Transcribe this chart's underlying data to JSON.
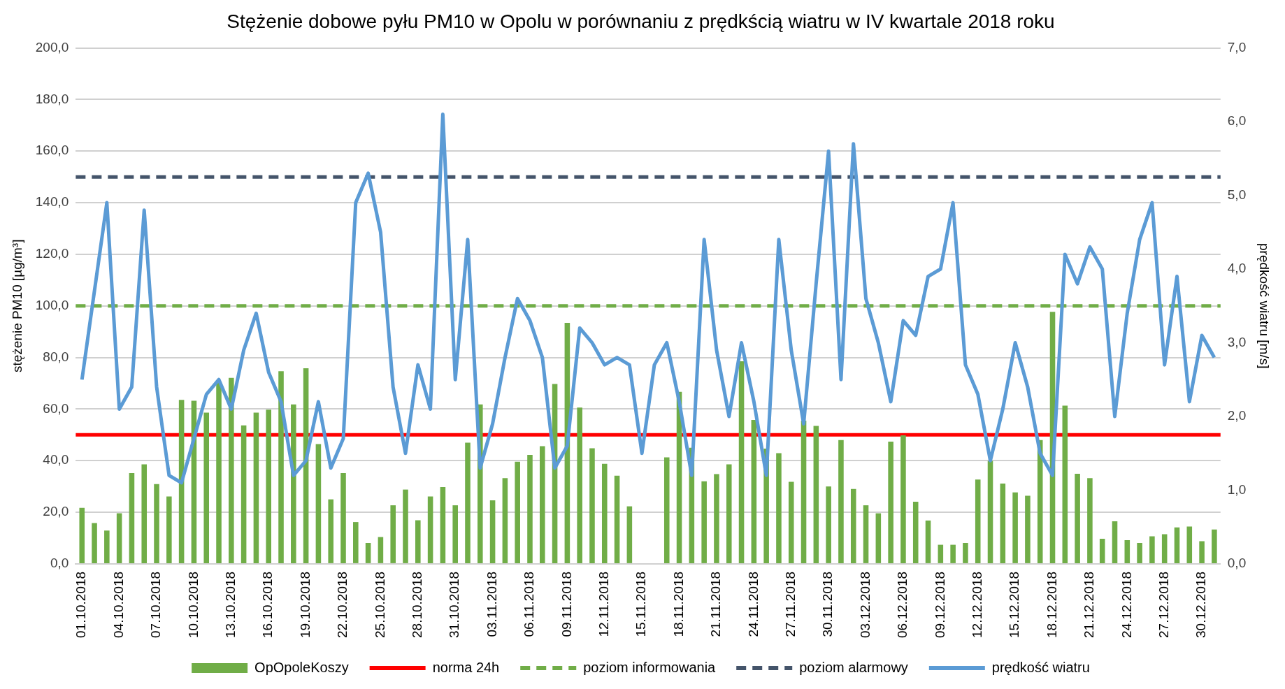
{
  "chart_data": {
    "type": "bar",
    "title": "Stężenie dobowe pyłu PM10 w Opolu w porównaniu z prędkścią wiatru w IV kwartale 2018 roku",
    "ylabel": "stężenie PM10 [µg/m³]",
    "y2label": "prędkość wiatru [m/s]",
    "categories": [
      "01.10.2018",
      null,
      null,
      "04.10.2018",
      null,
      null,
      "07.10.2018",
      null,
      null,
      "10.10.2018",
      null,
      null,
      "13.10.2018",
      null,
      null,
      "16.10.2018",
      null,
      null,
      "19.10.2018",
      null,
      null,
      "22.10.2018",
      null,
      null,
      "25.10.2018",
      null,
      null,
      "28.10.2018",
      null,
      null,
      "31.10.2018",
      null,
      null,
      "03.11.2018",
      null,
      null,
      "06.11.2018",
      null,
      null,
      "09.11.2018",
      null,
      null,
      "12.11.2018",
      null,
      null,
      "15.11.2018",
      null,
      null,
      "18.11.2018",
      null,
      null,
      "21.11.2018",
      null,
      null,
      "24.11.2018",
      null,
      null,
      "27.11.2018",
      null,
      null,
      "30.11.2018",
      null,
      null,
      "03.12.2018",
      null,
      null,
      "06.12.2018",
      null,
      null,
      "09.12.2018",
      null,
      null,
      "12.12.2018",
      null,
      null,
      "15.12.2018",
      null,
      null,
      "18.12.2018",
      null,
      null,
      "21.12.2018",
      null,
      null,
      "24.12.2018",
      null,
      null,
      "27.12.2018",
      null,
      null,
      "30.12.2018",
      null
    ],
    "series": [
      {
        "name": "OpOpoleKoszy",
        "color": "#70ad47",
        "values": [
          21.7,
          15.8,
          12.9,
          19.6,
          35.2,
          38.6,
          30.9,
          26.1,
          63.6,
          63.2,
          58.6,
          70.4,
          72.1,
          53.7,
          58.6,
          59.8,
          74.7,
          61.8,
          75.8,
          46.4,
          25,
          35.2,
          16.2,
          8.1,
          10.4,
          22.7,
          28.8,
          16.9,
          26.1,
          29.8,
          22.7,
          47,
          61.8,
          24.6,
          33.2,
          39.6,
          42.2,
          45.6,
          69.7,
          93.4,
          60.6,
          44.8,
          38.8,
          34.2,
          22.3,
          null,
          null,
          41.3,
          66.7,
          45,
          32,
          34.8,
          38.6,
          78.5,
          55.8,
          44.7,
          42.9,
          31.8,
          55.5,
          53.5,
          30,
          48,
          29,
          22.7,
          19.6,
          47.4,
          49.8,
          24.1,
          16.8,
          7.4,
          7.4,
          8.1,
          32.7,
          39.9,
          31.1,
          27.7,
          26.4,
          48,
          97.7,
          61.3,
          34.9,
          33.2,
          9.7,
          16.5,
          9.2,
          8.1,
          10.7,
          11.5,
          14.1,
          14.5,
          8.8,
          13.3
        ]
      },
      {
        "name": "prędkość wiatru",
        "type": "line",
        "axis": "y2",
        "color": "#5b9bd5",
        "values": [
          2.5,
          3.7,
          4.9,
          2.1,
          2.4,
          4.8,
          2.4,
          1.2,
          1.1,
          1.7,
          2.3,
          2.5,
          2.1,
          2.9,
          3.4,
          2.6,
          2.2,
          1.2,
          1.4,
          2.2,
          1.3,
          1.7,
          4.9,
          5.3,
          4.5,
          2.4,
          1.5,
          2.7,
          2.1,
          6.1,
          2.5,
          4.4,
          1.3,
          1.9,
          2.8,
          3.6,
          3.3,
          2.8,
          1.3,
          1.6,
          3.2,
          3,
          2.7,
          2.8,
          2.7,
          1.5,
          2.7,
          3,
          2.2,
          1.2,
          4.4,
          2.9,
          2,
          3,
          2.2,
          1.2,
          4.4,
          2.9,
          1.9,
          3.8,
          5.6,
          2.5,
          5.7,
          3.6,
          3,
          2.2,
          3.3,
          3.1,
          3.9,
          4,
          4.9,
          2.7,
          2.3,
          1.4,
          2.1,
          3,
          2.4,
          1.5,
          1.2,
          4.2,
          3.8,
          4.3,
          4,
          2,
          3.4,
          4.4,
          4.9,
          2.7,
          3.9,
          2.2,
          3.1,
          2.8
        ]
      }
    ],
    "ref_lines": [
      {
        "axis": "y",
        "value": 50,
        "label": "norma 24h",
        "color": "#ff0000",
        "line_style": "solid"
      },
      {
        "axis": "y",
        "value": 100,
        "label": "poziom informowania",
        "color": "#70ad47",
        "line_style": "dashed"
      },
      {
        "axis": "y",
        "value": 150,
        "label": "poziom alarmowy",
        "color": "#44546a",
        "line_style": "dashed"
      }
    ],
    "ylim": [
      0,
      200
    ],
    "yticks": [
      {
        "value": 0,
        "label": "0,0"
      },
      {
        "value": 20,
        "label": "20,0"
      },
      {
        "value": 40,
        "label": "40,0"
      },
      {
        "value": 60,
        "label": "60,0"
      },
      {
        "value": 80,
        "label": "80,0"
      },
      {
        "value": 100,
        "label": "100,0"
      },
      {
        "value": 120,
        "label": "120,0"
      },
      {
        "value": 140,
        "label": "140,0"
      },
      {
        "value": 160,
        "label": "160,0"
      },
      {
        "value": 180,
        "label": "180,0"
      },
      {
        "value": 200,
        "label": "200,0"
      }
    ],
    "y2lim": [
      0,
      7
    ],
    "y2ticks": [
      {
        "value": 0,
        "label": "0,0"
      },
      {
        "value": 1,
        "label": "1,0"
      },
      {
        "value": 2,
        "label": "2,0"
      },
      {
        "value": 3,
        "label": "3,0"
      },
      {
        "value": 4,
        "label": "4,0"
      },
      {
        "value": 5,
        "label": "5,0"
      },
      {
        "value": 6,
        "label": "6,0"
      },
      {
        "value": 7,
        "label": "7,0"
      }
    ],
    "grid": "y",
    "legend": "bottom",
    "marker": "none"
  }
}
